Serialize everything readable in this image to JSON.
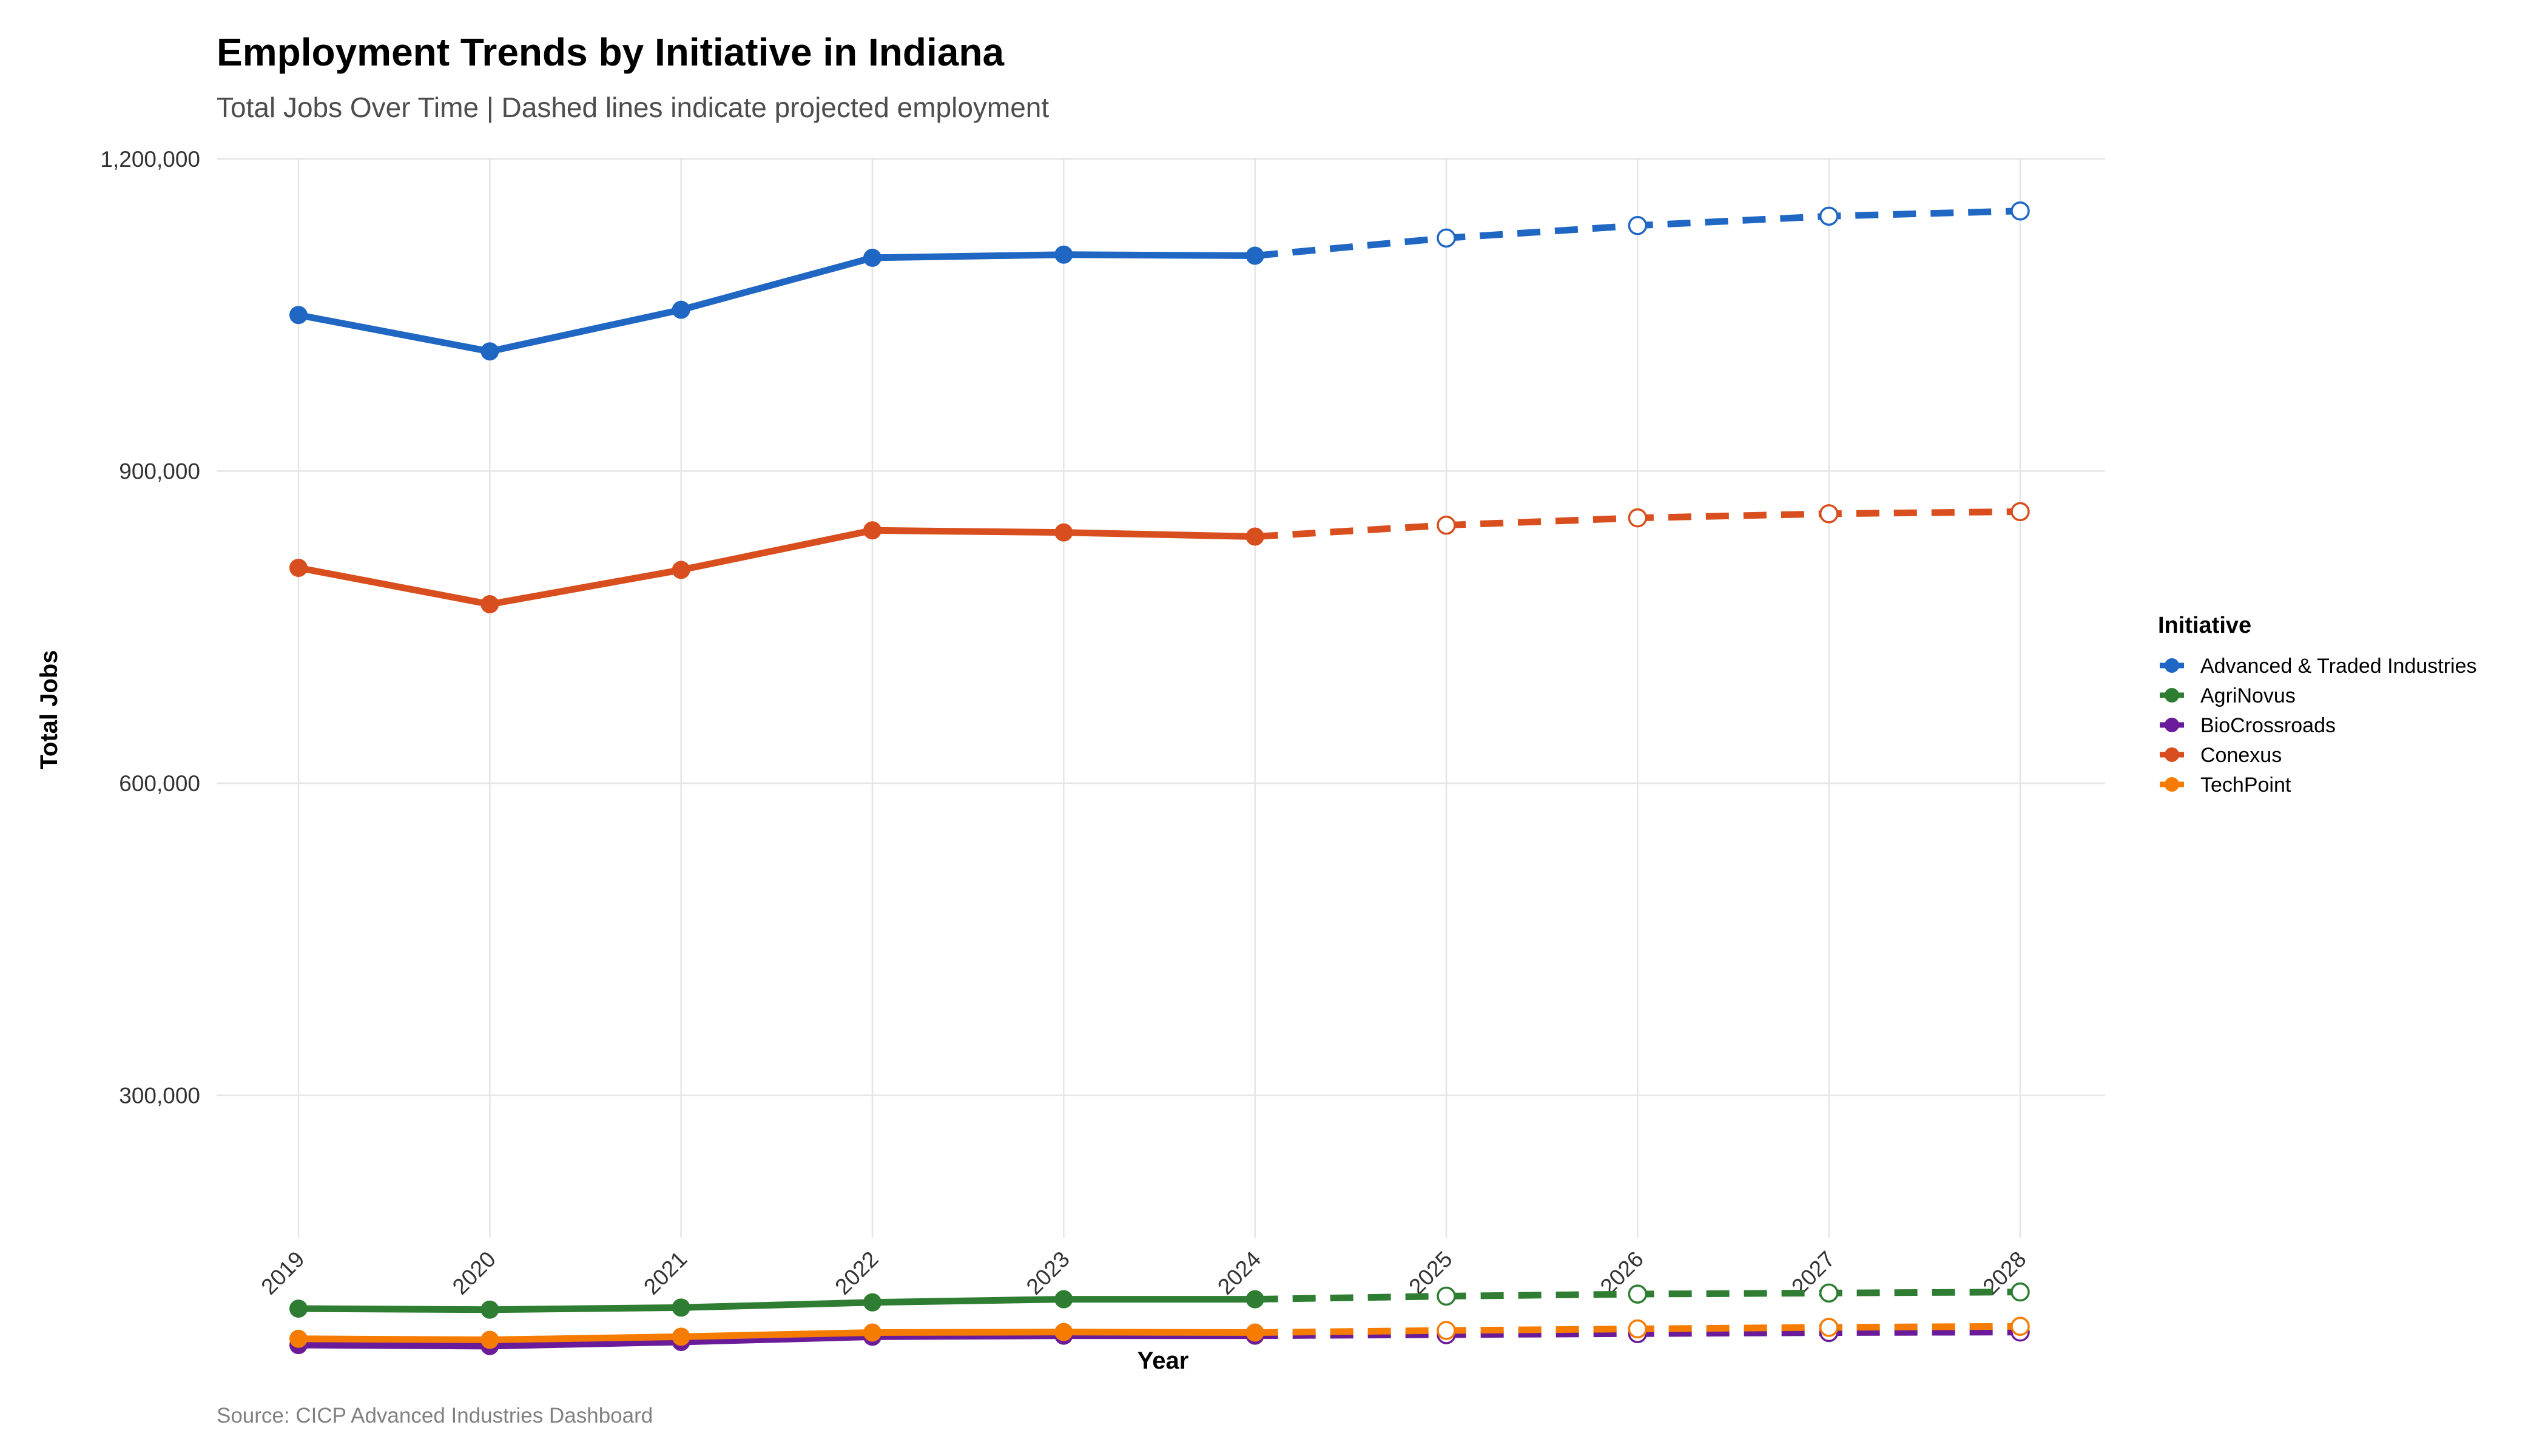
{
  "chart_data": {
    "type": "line",
    "title": "Employment Trends by Initiative in Indiana",
    "subtitle": "Total Jobs Over Time | Dashed lines indicate projected employment",
    "xlabel": "Year",
    "ylabel": "Total Jobs",
    "caption": "Source: CICP Advanced Industries Dashboard",
    "x": [
      2019,
      2020,
      2021,
      2022,
      2023,
      2024,
      2025,
      2026,
      2027,
      2028
    ],
    "projected_from_index": 5,
    "ylim": [
      0,
      1200000
    ],
    "y_ticks": [
      300000,
      600000,
      900000,
      1200000
    ],
    "y_tick_labels": [
      "300,000",
      "600,000",
      "900,000",
      "1,200,000"
    ],
    "grid": true,
    "legend": {
      "title": "Initiative",
      "placement": "right"
    },
    "series": [
      {
        "name": "Advanced & Traded Industries",
        "color": "#1f67c2",
        "values": [
          1050000,
          1015000,
          1055000,
          1105000,
          1108000,
          1107000,
          1124000,
          1136000,
          1145000,
          1150000
        ]
      },
      {
        "name": "AgriNovus",
        "color": "#2e7d32",
        "values": [
          95000,
          94000,
          96000,
          101000,
          104000,
          104000,
          107000,
          109000,
          110000,
          111000
        ]
      },
      {
        "name": "BioCrossroads",
        "color": "#6a1b9a",
        "values": [
          60000,
          59000,
          63000,
          68000,
          69000,
          69000,
          70000,
          71000,
          72000,
          72500
        ]
      },
      {
        "name": "Conexus",
        "color": "#d84e1e",
        "values": [
          807000,
          772000,
          805000,
          843000,
          841000,
          837000,
          848000,
          855000,
          859000,
          861000
        ]
      },
      {
        "name": "TechPoint",
        "color": "#f57c00",
        "values": [
          66000,
          65000,
          68000,
          72000,
          72500,
          72000,
          74000,
          75500,
          77000,
          78000
        ]
      }
    ]
  }
}
